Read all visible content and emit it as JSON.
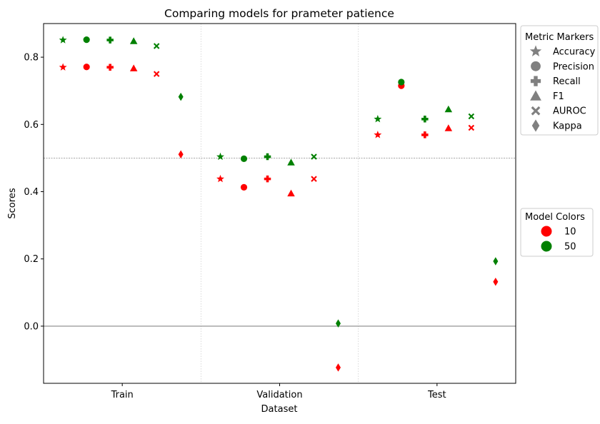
{
  "chart_data": {
    "type": "scatter",
    "title": "Comparing models for prameter patience",
    "xlabel": "Dataset",
    "ylabel": "Scores",
    "categories": [
      "Train",
      "Validation",
      "Test"
    ],
    "ylim": [
      -0.17,
      0.9
    ],
    "yticks": [
      0.0,
      0.2,
      0.4,
      0.6,
      0.8
    ],
    "ytick_labels": [
      "0.0",
      "0.2",
      "0.4",
      "0.6",
      "0.8"
    ],
    "reference_lines": [
      {
        "y": 0.5,
        "style": "dashed"
      },
      {
        "y": 0.0,
        "style": "solid"
      }
    ],
    "metrics": [
      "Accuracy",
      "Precision",
      "Recall",
      "F1",
      "AUROC",
      "Kappa"
    ],
    "metric_markers": [
      "star",
      "circle",
      "plus",
      "triangle",
      "x",
      "diamond"
    ],
    "series": [
      {
        "name": "10",
        "color": "#ff0000",
        "values": {
          "Train": [
            0.77,
            0.771,
            0.77,
            0.767,
            0.75,
            0.511
          ],
          "Validation": [
            0.438,
            0.413,
            0.438,
            0.395,
            0.438,
            -0.123
          ],
          "Test": [
            0.569,
            0.715,
            0.569,
            0.589,
            0.59,
            0.132
          ]
        }
      },
      {
        "name": "50",
        "color": "#008000",
        "values": {
          "Train": [
            0.851,
            0.852,
            0.851,
            0.848,
            0.833,
            0.682
          ],
          "Validation": [
            0.504,
            0.498,
            0.504,
            0.487,
            0.504,
            0.008
          ],
          "Test": [
            0.616,
            0.726,
            0.616,
            0.645,
            0.624,
            0.193
          ]
        }
      }
    ],
    "legend_metric_title": "Metric Markers",
    "legend_model_title": "Model Colors",
    "legend_position": "outside-right",
    "marker_legend_color": "#808080"
  }
}
